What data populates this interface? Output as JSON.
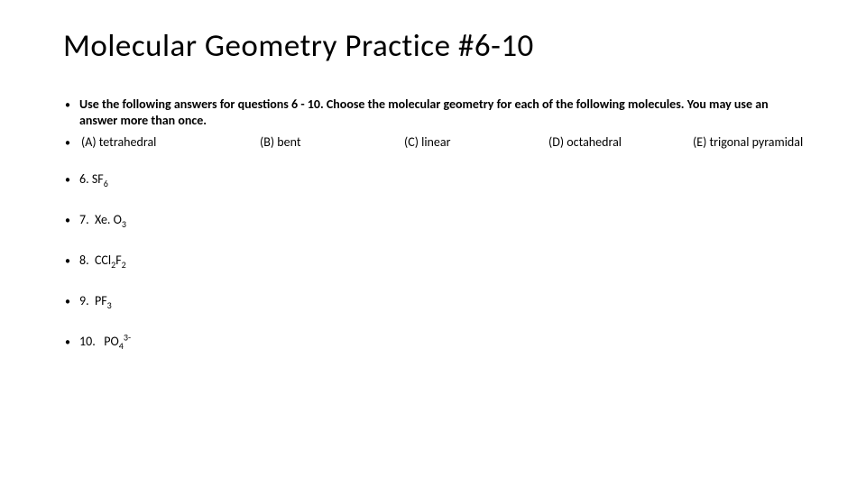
{
  "title": "Molecular Geometry Practice #6-10",
  "instructions": "Use the following answers for questions 6 - 10.  Choose the molecular geometry for each of the following molecules.  You may use an answer more than once.",
  "answers": {
    "a": " (A) tetrahedral",
    "b": "(B) bent",
    "c": "(C) linear",
    "d": "(D) octahedral",
    "e": "(E) trigonal pyramidal"
  },
  "questions": {
    "q6": {
      "num": "6.",
      "pre": "SF",
      "sub1": "6",
      "mid": "",
      "sub2": "",
      "sup": ""
    },
    "q7": {
      "num": "7. ",
      "pre": "Xe. O",
      "sub1": "3",
      "mid": "",
      "sub2": "",
      "sup": ""
    },
    "q8": {
      "num": "8. ",
      "pre": "CCl",
      "sub1": "2",
      "mid": "F",
      "sub2": "2",
      "sup": ""
    },
    "q9": {
      "num": "9. ",
      "pre": "PF",
      "sub1": "3",
      "mid": "",
      "sub2": "",
      "sup": ""
    },
    "q10": {
      "num": "10. ",
      "pre": " PO",
      "sub1": "4",
      "mid": "",
      "sub2": "",
      "sup": "3-"
    }
  },
  "style": {
    "background_color": "#ffffff",
    "text_color": "#000000",
    "title_fontsize": 35,
    "body_fontsize": 14,
    "font_family": "Calibri",
    "title_weight": 300,
    "instructions_weight": 700
  }
}
